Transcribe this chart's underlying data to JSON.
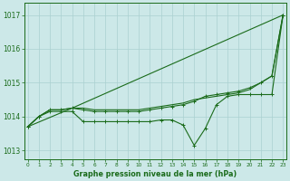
{
  "title": "Graphe pression niveau de la mer (hPa)",
  "x_labels": [
    "0",
    "1",
    "2",
    "3",
    "4",
    "5",
    "6",
    "7",
    "8",
    "9",
    "10",
    "11",
    "12",
    "13",
    "14",
    "15",
    "16",
    "17",
    "18",
    "19",
    "20",
    "21",
    "22",
    "23"
  ],
  "ylim": [
    1012.75,
    1017.35
  ],
  "yticks": [
    1013,
    1014,
    1015,
    1016,
    1017
  ],
  "xlim": [
    -0.3,
    23.3
  ],
  "line_color": "#1a6b1a",
  "bg_color": "#cce8e8",
  "grid_color": "#aad0d0",
  "line_width": 0.8,
  "marker_size": 2.5,
  "line1": {
    "x": [
      0,
      4,
      23
    ],
    "y": [
      1013.7,
      1014.25,
      1017.0
    ],
    "has_markers": false
  },
  "line2": {
    "x": [
      0,
      1,
      2,
      3,
      4,
      5,
      6,
      7,
      8,
      9,
      10,
      11,
      12,
      13,
      14,
      15,
      16,
      17,
      18,
      19,
      20,
      21,
      22,
      23
    ],
    "y": [
      1013.7,
      1014.0,
      1014.2,
      1014.2,
      1014.25,
      1014.25,
      1014.2,
      1014.2,
      1014.2,
      1014.2,
      1014.2,
      1014.25,
      1014.3,
      1014.35,
      1014.4,
      1014.5,
      1014.55,
      1014.6,
      1014.65,
      1014.7,
      1014.8,
      1015.0,
      1015.2,
      1017.0
    ],
    "has_markers": false
  },
  "line3": {
    "x": [
      0,
      1,
      2,
      3,
      4,
      5,
      6,
      7,
      8,
      9,
      10,
      11,
      12,
      13,
      14,
      15,
      16,
      17,
      18,
      19,
      20,
      21,
      22,
      23
    ],
    "y": [
      1013.7,
      1014.0,
      1014.2,
      1014.2,
      1014.25,
      1014.2,
      1014.15,
      1014.15,
      1014.15,
      1014.15,
      1014.15,
      1014.2,
      1014.25,
      1014.3,
      1014.35,
      1014.45,
      1014.6,
      1014.65,
      1014.7,
      1014.75,
      1014.85,
      1015.0,
      1015.2,
      1017.0
    ],
    "has_markers": true
  },
  "line4": {
    "x": [
      0,
      1,
      2,
      3,
      4,
      5,
      6,
      7,
      8,
      9,
      10,
      11,
      12,
      13,
      14,
      15,
      16,
      17,
      18,
      19,
      20,
      21,
      22,
      23
    ],
    "y": [
      1013.7,
      1014.0,
      1014.15,
      1014.15,
      1014.15,
      1013.85,
      1013.85,
      1013.85,
      1013.85,
      1013.85,
      1013.85,
      1013.85,
      1013.9,
      1013.9,
      1013.75,
      1013.15,
      1013.65,
      1014.35,
      1014.6,
      1014.65,
      1014.65,
      1014.65,
      1014.65,
      1017.0
    ],
    "has_markers": true
  }
}
